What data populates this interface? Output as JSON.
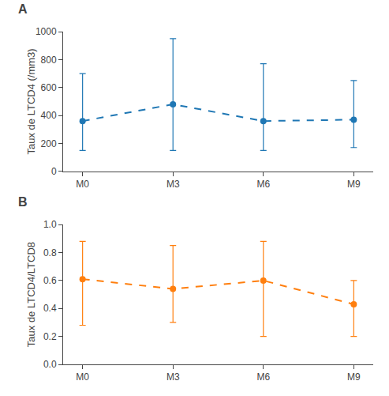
{
  "chart_data": [
    {
      "type": "line",
      "categories": [
        "M0",
        "M3",
        "M6",
        "M9"
      ],
      "values": [
        360,
        480,
        360,
        370
      ],
      "error_low": [
        210,
        330,
        210,
        200
      ],
      "error_high": [
        340,
        470,
        410,
        280
      ],
      "ylabel": "Taux de LTCD4 (/mm3)",
      "ylim": [
        0,
        1000
      ],
      "yticks": [
        0,
        200,
        400,
        600,
        800,
        1000
      ],
      "line_style": "dashed",
      "marker": "circle",
      "grid": false,
      "annotations": [
        {
          "text": "A"
        }
      ]
    },
    {
      "type": "line",
      "categories": [
        "M0",
        "M3",
        "M6",
        "M9"
      ],
      "values": [
        0.61,
        0.54,
        0.6,
        0.43
      ],
      "error_low": [
        0.33,
        0.24,
        0.4,
        0.23
      ],
      "error_high": [
        0.27,
        0.31,
        0.28,
        0.17
      ],
      "ylabel": "Taux de LTCD4/LTCD8",
      "ylim": [
        0.0,
        1.0
      ],
      "yticks": [
        {
          "value": 0.0,
          "label": "0.0"
        },
        0.2,
        0.4,
        0.6,
        0.8,
        {
          "value": 1.0,
          "label": "1.0"
        }
      ],
      "line_style": "dashed",
      "marker": "circle",
      "grid": false,
      "annotations": [
        {
          "text": "B"
        }
      ]
    }
  ]
}
